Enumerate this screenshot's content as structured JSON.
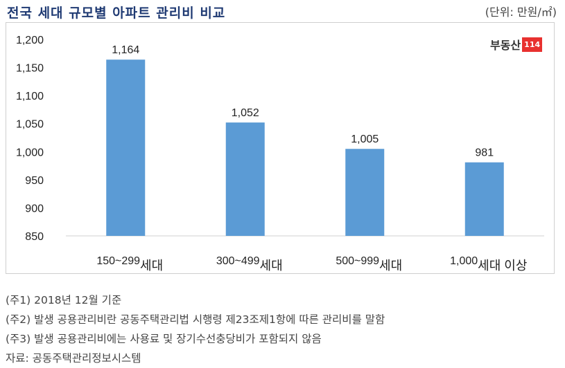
{
  "title": "전국 세대 규모별 아파트 관리비 비교",
  "unit": "(단위: 만원/㎡)",
  "logo": {
    "text": "부동산",
    "number": "114"
  },
  "chart_data": {
    "type": "bar",
    "title": "전국 세대 규모별 아파트 관리비 비교",
    "ylabel": "만원/㎡",
    "categories": [
      {
        "num": "150~299",
        "suffix": "세대"
      },
      {
        "num": "300~499",
        "suffix": "세대"
      },
      {
        "num": "500~999",
        "suffix": "세대"
      },
      {
        "num": "1,000",
        "suffix": "세대 이상"
      }
    ],
    "values": [
      1164,
      1052,
      1005,
      981
    ],
    "value_labels": [
      "1,164",
      "1,052",
      "1,005",
      "981"
    ],
    "ylim": [
      850,
      1200
    ],
    "yticks": [
      1200,
      1150,
      1100,
      1050,
      1000,
      950,
      900,
      850
    ],
    "ytick_labels": [
      "1,200",
      "1,150",
      "1,100",
      "1,050",
      "1,000",
      "950",
      "900",
      "850"
    ],
    "color": "#5b9bd5",
    "grid": false
  },
  "notes": [
    "(주1) 2018년 12월 기준",
    "(주2) 발생 공용관리비란 공동주택관리법 시행령 제23조제1항에 따른 관리비를 말함",
    "(주3) 발생 공용관리비에는 사용료 및 장기수선충당비가 포함되지 않음",
    "자료: 공동주택관리정보시스템"
  ]
}
